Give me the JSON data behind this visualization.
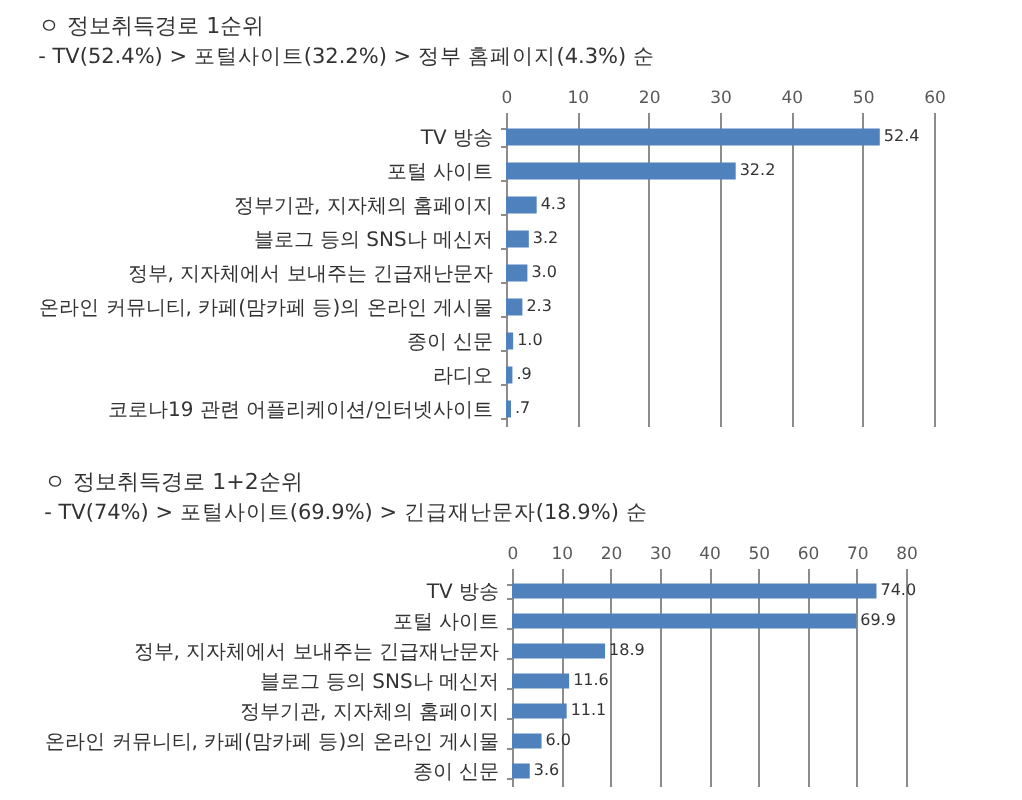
{
  "chart_data": [
    {
      "type": "bar",
      "orientation": "horizontal",
      "title": "ㅇ 정보취득경로 1순위",
      "subtitle": "- TV(52.4%) > 포털사이트(32.2%) > 정부 홈페이지(4.3%) 순",
      "categories": [
        "TV 방송",
        "포털 사이트",
        "정부기관, 지자체의 홈페이지",
        "블로그 등의 SNS나 메신저",
        "정부, 지자체에서 보내주는 긴급재난문자",
        "온라인 커뮤니티, 카페(맘카페 등)의 온라인 게시물",
        "종이 신문",
        "라디오",
        "코로나19 관련 어플리케이션/인터넷사이트"
      ],
      "values": [
        52.4,
        32.2,
        4.3,
        3.2,
        3.0,
        2.3,
        1.0,
        0.9,
        0.7
      ],
      "value_labels": [
        "52.4",
        "32.2",
        "4.3",
        "3.2",
        "3.0",
        "2.3",
        "1.0",
        ".9",
        ".7"
      ],
      "color": "#4f81bd",
      "xlim": [
        0,
        60
      ],
      "xticks": [
        0,
        10,
        20,
        30,
        40,
        50,
        60
      ],
      "grid": "x"
    },
    {
      "type": "bar",
      "orientation": "horizontal",
      "title": "ㅇ 정보취득경로 1+2순위",
      "subtitle": "- TV(74%) > 포털사이트(69.9%) > 긴급재난문자(18.9%) 순",
      "categories": [
        "TV 방송",
        "포털 사이트",
        "정부, 지자체에서 보내주는 긴급재난문자",
        "블로그 등의 SNS나 메신저",
        "정부기관, 지자체의 홈페이지",
        "온라인 커뮤니티, 카페(맘카페 등)의 온라인 게시물",
        "종이 신문"
      ],
      "values": [
        74.0,
        69.9,
        18.9,
        11.6,
        11.1,
        6.0,
        3.6
      ],
      "value_labels": [
        "74.0",
        "69.9",
        "18.9",
        "11.6",
        "11.1",
        "6.0",
        "3.6"
      ],
      "color": "#4f81bd",
      "xlim": [
        0,
        80
      ],
      "xticks": [
        0,
        10,
        20,
        30,
        40,
        50,
        60,
        70,
        80
      ],
      "grid": "x"
    }
  ]
}
